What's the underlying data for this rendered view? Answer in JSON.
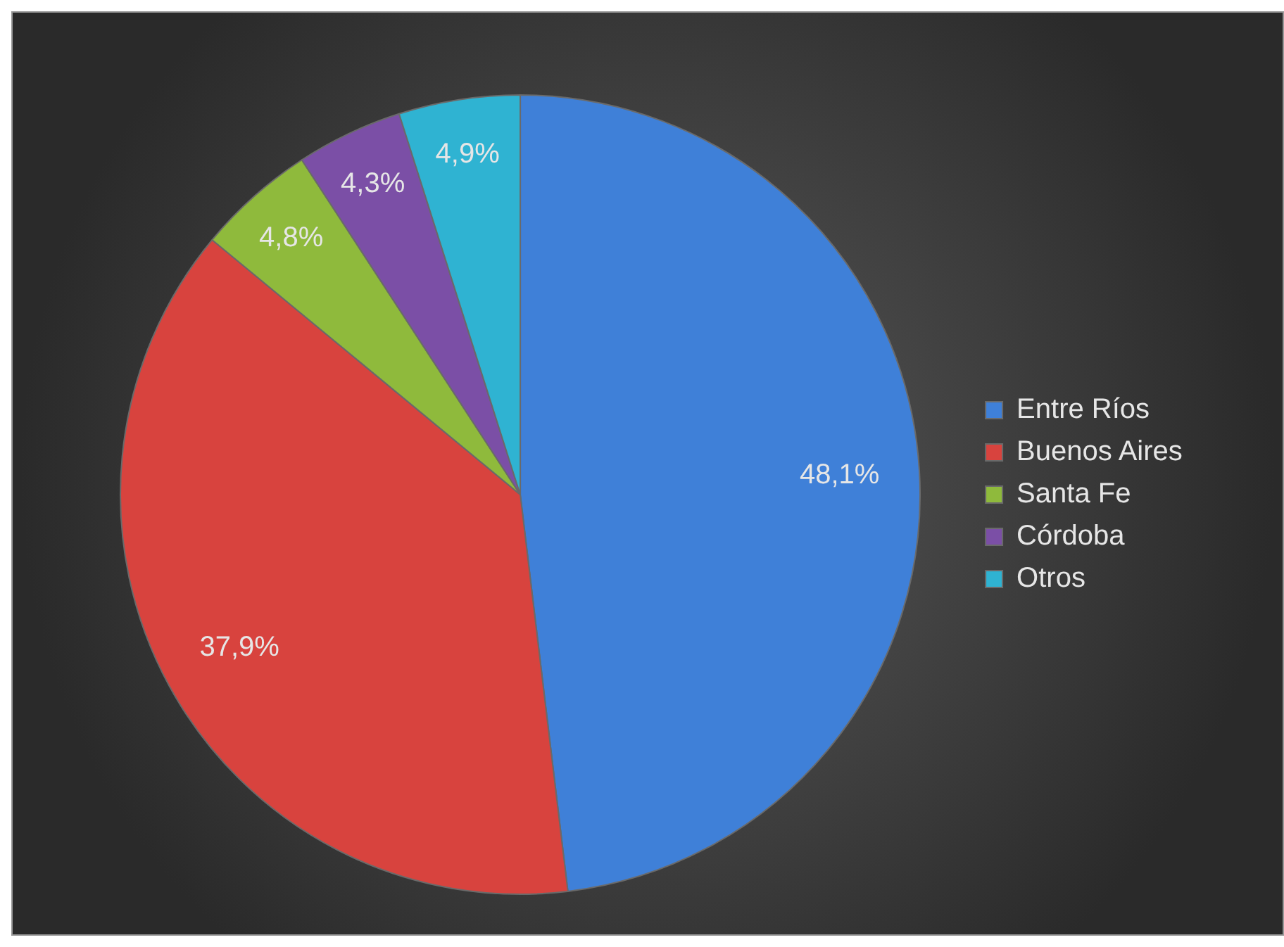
{
  "chart_data": {
    "type": "pie",
    "categories": [
      "Entre Ríos",
      "Buenos Aires",
      "Santa Fe",
      "Córdoba",
      "Otros"
    ],
    "values": [
      48.1,
      37.9,
      4.8,
      4.3,
      4.9
    ],
    "colors": [
      "#3f80d8",
      "#d8433e",
      "#8fba3c",
      "#7b4fa6",
      "#2fb3d2"
    ],
    "value_labels": [
      "48,1%",
      "37,9%",
      "4,8%",
      "4,3%",
      "4,9%"
    ],
    "legend": "right"
  }
}
